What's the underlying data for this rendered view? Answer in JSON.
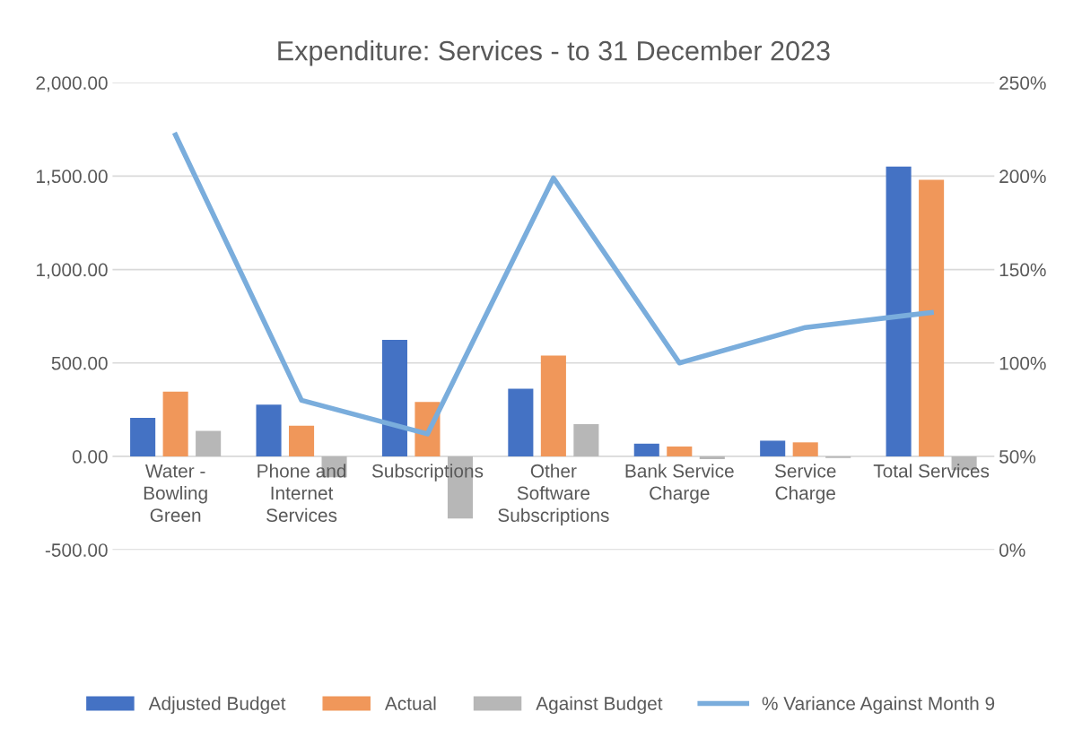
{
  "chart_data": {
    "type": "bar",
    "title": "Expenditure: Services - to 31 December 2023",
    "categories": [
      "Water - Bowling Green",
      "Phone and Internet Services",
      "Subscriptions",
      "Other Software Subscriptions",
      "Bank Service Charge",
      "Service Charge",
      "Total Services"
    ],
    "series": [
      {
        "name": "Adjusted Budget",
        "color": "#4472c4",
        "values": [
          206,
          277,
          623,
          362,
          68,
          84,
          1551
        ]
      },
      {
        "name": "Actual",
        "color": "#f0975a",
        "values": [
          346,
          164,
          291,
          539,
          53,
          75,
          1480
        ]
      },
      {
        "name": "Against Budget",
        "color": "#b7b7b7",
        "values": [
          136,
          -112,
          -333,
          173,
          -15,
          -9,
          -74
        ]
      },
      {
        "name": "% Variance Against Month 9",
        "color": "#7aaddc",
        "type": "line",
        "axis": "y2",
        "values": [
          222,
          80,
          62,
          199,
          100,
          119,
          127
        ]
      }
    ],
    "ylim": [
      -500,
      2000
    ],
    "yticks": [
      {
        "value": -500,
        "label": "-500.00"
      },
      {
        "value": 0,
        "label": "0.00"
      },
      {
        "value": 500,
        "label": "500.00"
      },
      {
        "value": 1000,
        "label": "1,000.00"
      },
      {
        "value": 1500,
        "label": "1,500.00"
      },
      {
        "value": 2000,
        "label": "2,000.00"
      }
    ],
    "y2lim": [
      0,
      250
    ],
    "y2ticks": [
      {
        "value": 0,
        "label": "0%"
      },
      {
        "value": 50,
        "label": "50%"
      },
      {
        "value": 100,
        "label": "100%"
      },
      {
        "value": 150,
        "label": "150%"
      },
      {
        "value": 200,
        "label": "200%"
      },
      {
        "value": 250,
        "label": "250%"
      }
    ],
    "grid": "y",
    "legend": "bottom"
  }
}
